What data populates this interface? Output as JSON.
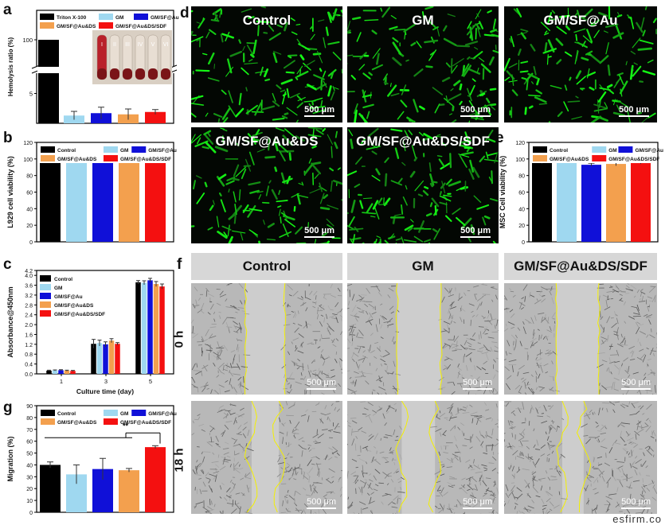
{
  "panels": {
    "a": "a",
    "b": "b",
    "c": "c",
    "d": "d",
    "e": "e",
    "f": "f",
    "g": "g"
  },
  "colors": {
    "black": "#000000",
    "light_blue": "#9fd8f0",
    "blue": "#1010d8",
    "orange": "#f3a04e",
    "red": "#f41010"
  },
  "chart_data": [
    {
      "panel": "a",
      "type": "bar",
      "ylabel": "Hemolysis ratio (%)",
      "series": [
        {
          "name": "Triton X-100",
          "value": 100,
          "error": 0
        },
        {
          "name": "GM",
          "value": 1.3,
          "error": 0.7
        },
        {
          "name": "GM/SF@Au",
          "value": 1.7,
          "error": 1.0
        },
        {
          "name": "GM/SF@Au&DS",
          "value": 1.5,
          "error": 0.9
        },
        {
          "name": "GM/SF@Au&DS/SDF",
          "value": 1.9,
          "error": 0.4
        }
      ],
      "yticks": [
        "100",
        "5"
      ],
      "axis_break": true,
      "inset_tube_labels": [
        "I",
        "II",
        "III",
        "IV",
        "V",
        "VI"
      ]
    },
    {
      "panel": "b",
      "type": "bar",
      "ylabel": "L929 cell viability (%)",
      "ylim": [
        0,
        120
      ],
      "yticks": [
        "0",
        "20",
        "40",
        "60",
        "80",
        "100",
        "120"
      ],
      "series": [
        {
          "name": "Control",
          "value": 100,
          "error": 0.6
        },
        {
          "name": "GM",
          "value": 99.6,
          "error": 0.5
        },
        {
          "name": "GM/SF@Au",
          "value": 99.8,
          "error": 0.4
        },
        {
          "name": "GM/SF@Au&DS",
          "value": 99.7,
          "error": 0.5
        },
        {
          "name": "GM/SF@Au&DS/SDF",
          "value": 99.6,
          "error": 0.4
        }
      ]
    },
    {
      "panel": "c",
      "type": "bar",
      "xlabel": "Culture time (day)",
      "ylabel": "Absorbance@450nm",
      "ylim": [
        0,
        4.2
      ],
      "yticks": [
        "0.0",
        "0.4",
        "0.8",
        "1.2",
        "1.6",
        "2.0",
        "2.4",
        "2.8",
        "3.2",
        "3.6",
        "4.0",
        "4.2"
      ],
      "categories": [
        "1",
        "3",
        "5"
      ],
      "series": [
        {
          "name": "Control",
          "values": [
            0.13,
            1.22,
            3.72
          ],
          "errors": [
            0.02,
            0.18,
            0.07
          ]
        },
        {
          "name": "GM",
          "values": [
            0.14,
            1.25,
            3.7
          ],
          "errors": [
            0.02,
            0.12,
            0.08
          ]
        },
        {
          "name": "GM/SF@Au",
          "values": [
            0.15,
            1.2,
            3.8
          ],
          "errors": [
            0.02,
            0.1,
            0.08
          ]
        },
        {
          "name": "GM/SF@Au&DS",
          "values": [
            0.13,
            1.35,
            3.65
          ],
          "errors": [
            0.02,
            0.08,
            0.1
          ]
        },
        {
          "name": "GM/SF@Au&DS/SDF",
          "values": [
            0.12,
            1.22,
            3.55
          ],
          "errors": [
            0.02,
            0.05,
            0.1
          ]
        }
      ]
    },
    {
      "panel": "e",
      "type": "bar",
      "ylabel": "MSC Cell viability (%)",
      "ylim": [
        0,
        120
      ],
      "yticks": [
        "0",
        "20",
        "40",
        "60",
        "80",
        "100",
        "120"
      ],
      "series": [
        {
          "name": "Control",
          "value": 96,
          "error": 1.5
        },
        {
          "name": "GM",
          "value": 97,
          "error": 1.8
        },
        {
          "name": "GM/SF@Au",
          "value": 93,
          "error": 1.8
        },
        {
          "name": "GM/SF@Au&DS",
          "value": 94,
          "error": 2.2
        },
        {
          "name": "GM/SF@Au&DS/SDF",
          "value": 95,
          "error": 1.0
        }
      ]
    },
    {
      "panel": "g",
      "type": "bar",
      "ylabel": "Migration (%)",
      "ylim": [
        0,
        90
      ],
      "yticks": [
        "0",
        "10",
        "20",
        "30",
        "40",
        "50",
        "60",
        "70",
        "80",
        "90"
      ],
      "series": [
        {
          "name": "Control",
          "value": 40,
          "error": 2.5
        },
        {
          "name": "GM",
          "value": 32,
          "error": 8
        },
        {
          "name": "GM/SF@Au",
          "value": 36.5,
          "error": 9
        },
        {
          "name": "GM/SF@Au&DS",
          "value": 35.5,
          "error": 1.5
        },
        {
          "name": "GM/SF@Au&DS/SDF",
          "value": 55,
          "error": 1.2
        }
      ],
      "significance": "**"
    }
  ],
  "fluorescence": {
    "titles": [
      "Control",
      "GM",
      "GM/SF@Au",
      "GM/SF@Au&DS",
      "GM/SF@Au&DS/SDF"
    ],
    "scale": "500 μm"
  },
  "migration_images": {
    "headers": [
      "Control",
      "GM",
      "GM/SF@Au&DS/SDF"
    ],
    "rows": [
      "0 h",
      "18 h"
    ],
    "scale": "500 μm"
  },
  "watermark": "esfirm.co"
}
